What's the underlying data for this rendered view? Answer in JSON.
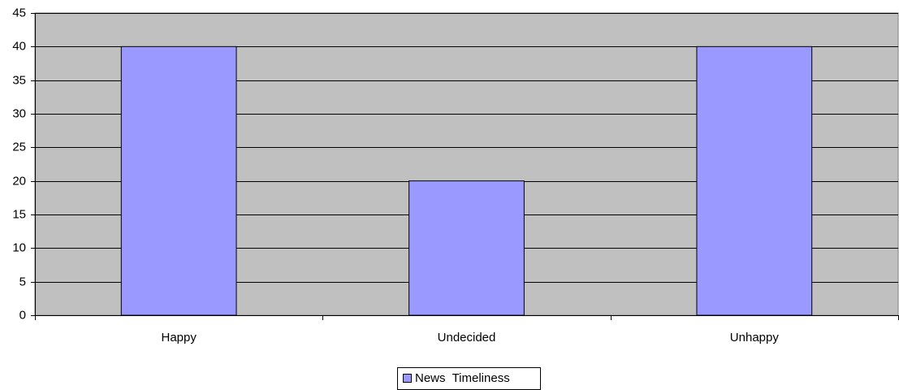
{
  "chart_data": {
    "type": "bar",
    "categories": [
      "Happy",
      "Undecided",
      "Unhappy"
    ],
    "series": [
      {
        "name": "News  Timeliness",
        "color": "#9999ff",
        "values": [
          40,
          20,
          40
        ]
      }
    ],
    "ylim": [
      0,
      45
    ],
    "yticks": [
      0,
      5,
      10,
      15,
      20,
      25,
      30,
      35,
      40,
      45
    ],
    "grid": true,
    "legend": "bottom",
    "plot_background": "#c0c0c0"
  }
}
